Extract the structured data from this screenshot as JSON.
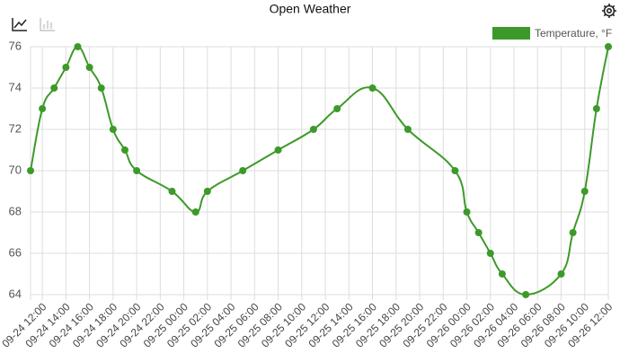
{
  "chart_data": {
    "type": "line",
    "title": "Open Weather",
    "x": [
      "09-24 11:00",
      "09-24 12:00",
      "09-24 13:00",
      "09-24 14:00",
      "09-24 15:00",
      "09-24 16:00",
      "09-24 17:00",
      "09-24 18:00",
      "09-24 19:00",
      "09-24 20:00",
      "09-24 23:00",
      "09-25 01:00",
      "09-25 02:00",
      "09-25 05:00",
      "09-25 08:00",
      "09-25 11:00",
      "09-25 13:00",
      "09-25 16:00",
      "09-25 19:00",
      "09-25 23:00",
      "09-26 00:00",
      "09-26 01:00",
      "09-26 02:00",
      "09-26 03:00",
      "09-26 05:00",
      "09-26 08:00",
      "09-26 09:00",
      "09-26 10:00",
      "09-26 11:00",
      "09-26 12:00"
    ],
    "series": [
      {
        "name": "Temperature, °F",
        "color": "#3d9a2a",
        "values": [
          70,
          73,
          74,
          75,
          76,
          75,
          74,
          72,
          71,
          70,
          69,
          68,
          69,
          70,
          71,
          72,
          73,
          74,
          72,
          70,
          68,
          67,
          66,
          65,
          64,
          65,
          67,
          69,
          73,
          76
        ]
      }
    ],
    "xlim": [
      "09-24 11:00",
      "09-26 12:00"
    ],
    "xticks": [
      "09-24 12:00",
      "09-24 14:00",
      "09-24 16:00",
      "09-24 18:00",
      "09-24 20:00",
      "09-24 22:00",
      "09-25 00:00",
      "09-25 02:00",
      "09-25 04:00",
      "09-25 06:00",
      "09-25 08:00",
      "09-25 10:00",
      "09-25 12:00",
      "09-25 14:00",
      "09-25 16:00",
      "09-25 18:00",
      "09-25 20:00",
      "09-25 22:00",
      "09-26 00:00",
      "09-26 02:00",
      "09-26 04:00",
      "09-26 06:00",
      "09-26 08:00",
      "09-26 10:00",
      "09-26 12:00"
    ],
    "ylim": [
      64,
      76
    ],
    "yticks": [
      64,
      66,
      68,
      70,
      72,
      74,
      76
    ],
    "grid": true,
    "legend": "top-right"
  }
}
